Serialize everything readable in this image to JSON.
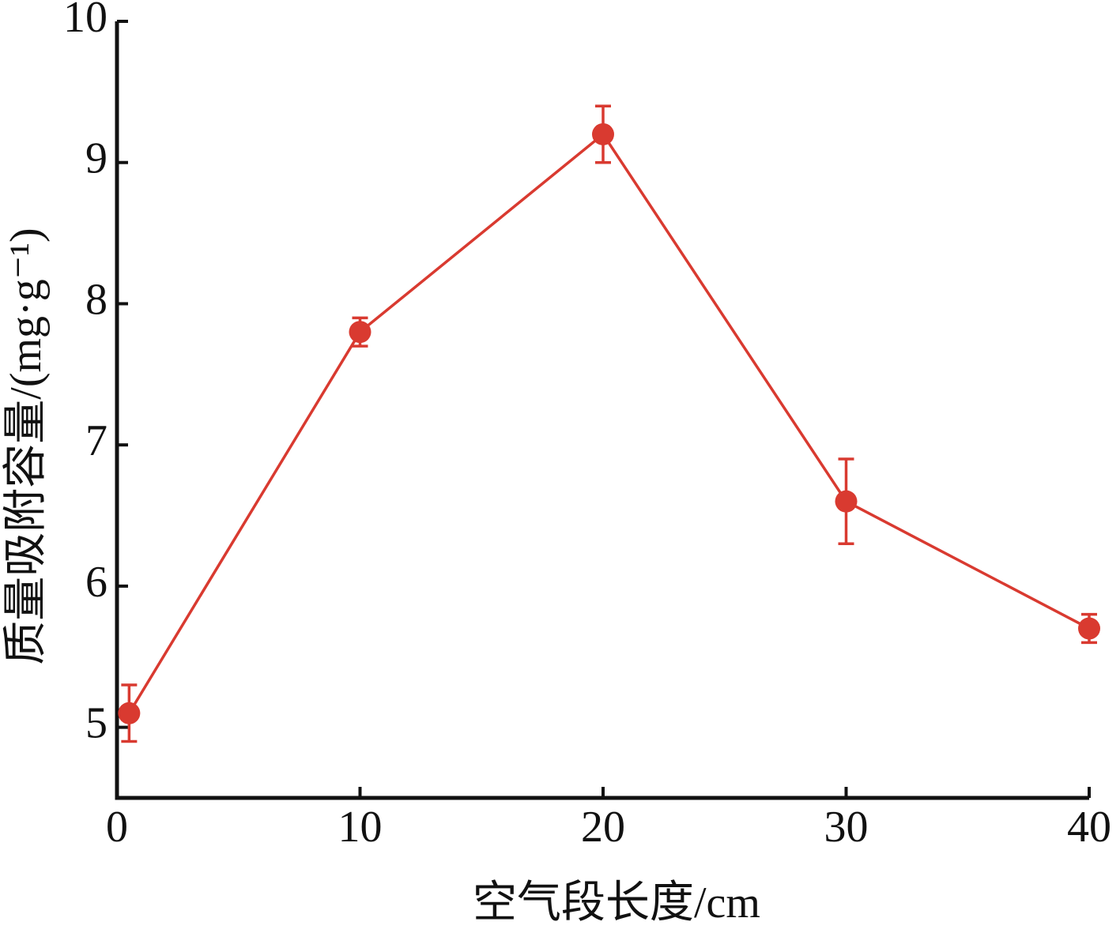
{
  "chart_data": {
    "type": "line",
    "x_label": "空气段长度/cm",
    "y_label": "质量吸附容量/(mg·g⁻¹)",
    "x": [
      0.5,
      10,
      20,
      30,
      40
    ],
    "series": [
      {
        "color": "#d93a30",
        "values": [
          5.1,
          7.8,
          9.2,
          6.6,
          5.7
        ],
        "errors": [
          0.2,
          0.1,
          0.2,
          0.3,
          0.1
        ]
      }
    ],
    "xlim": [
      0,
      40
    ],
    "xticks": [
      0,
      10,
      20,
      30,
      40
    ],
    "ylim": [
      4.5,
      10
    ],
    "yticks": [
      5,
      6,
      7,
      8,
      9,
      10
    ],
    "grid": false
  }
}
